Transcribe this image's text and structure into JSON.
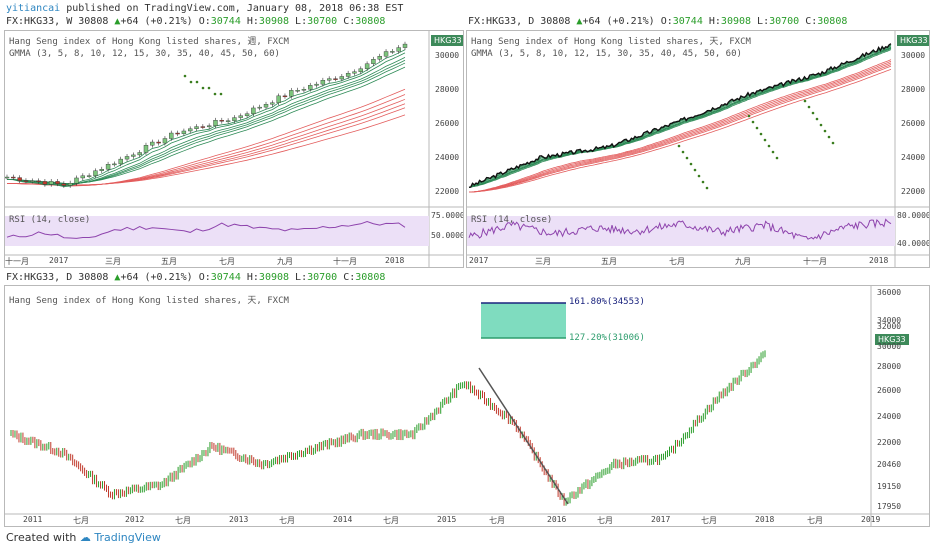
{
  "header": {
    "author": "yitiancai",
    "published": "published on TradingView.com, January 08, 2018 06:38 EST"
  },
  "charts": {
    "weekly": {
      "symbol": "FX:HKG33, W",
      "last": "30808",
      "change": "+64 (+0.21%)",
      "o": "30744",
      "h": "30908",
      "l": "30700",
      "c": "30808",
      "title": "Hang Seng index of Hong Kong listed shares, 週, FXCM",
      "gmma": "GMMA (3, 5, 8, 10, 12, 15, 30, 35, 40, 45, 50, 60)",
      "badge": "HKG33",
      "y_ticks": [
        "30000",
        "28000",
        "26000",
        "24000",
        "22000"
      ],
      "rsi_label": "RSI (14, close)",
      "rsi_ticks": [
        "75.0000",
        "50.0000"
      ],
      "x_ticks": [
        "十一月",
        "2017",
        "三月",
        "五月",
        "七月",
        "九月",
        "十一月",
        "2018"
      ]
    },
    "daily_top": {
      "symbol": "FX:HKG33, D",
      "last": "30808",
      "change": "+64 (+0.21%)",
      "o": "30744",
      "h": "30908",
      "l": "30700",
      "c": "30808",
      "title": "Hang Seng index of Hong Kong listed shares, 天, FXCM",
      "gmma": "GMMA (3, 5, 8, 10, 12, 15, 30, 35, 40, 45, 50, 60)",
      "badge": "HKG33",
      "y_ticks": [
        "30000",
        "28000",
        "26000",
        "24000",
        "22000"
      ],
      "rsi_label": "RSI (14, close)",
      "rsi_ticks": [
        "80.0000",
        "40.0000"
      ],
      "x_ticks": [
        "2017",
        "三月",
        "五月",
        "七月",
        "九月",
        "十一月",
        "2018"
      ]
    },
    "daily_bottom": {
      "symbol": "FX:HKG33, D",
      "last": "30808",
      "change": "+64 (+0.21%)",
      "o": "30744",
      "h": "30908",
      "l": "30700",
      "c": "30808",
      "title": "Hang Seng index of Hong Kong listed shares, 天, FXCM",
      "badge": "HKG33",
      "fib_high": "161.80%(34553)",
      "fib_low": "127.20%(31006)",
      "y_ticks": [
        "36000",
        "34000",
        "32000",
        "30000",
        "28000",
        "26000",
        "24000",
        "22000",
        "20460",
        "19150",
        "17950"
      ],
      "x_ticks": [
        "2011",
        "七月",
        "2012",
        "七月",
        "2013",
        "七月",
        "2014",
        "七月",
        "2015",
        "七月",
        "2016",
        "七月",
        "2017",
        "七月",
        "2018",
        "七月",
        "2019"
      ]
    }
  },
  "footer": {
    "created_with": "Created with",
    "brand": "TradingView"
  },
  "colors": {
    "up": "#2a9d2a",
    "down": "#c0392b",
    "gmma_short": "#2e8b57",
    "gmma_long": "#e35d5d",
    "rsi_line": "#8e44ad",
    "rsi_band": "#e9d8f5",
    "fib_fill": "#7fdcbf",
    "fib_top_line": "#1a237e"
  },
  "chart_data": [
    {
      "type": "line",
      "title": "Hang Seng index of Hong Kong listed shares, 週, FXCM",
      "x": [
        "2016-11",
        "2017-01",
        "2017-03",
        "2017-05",
        "2017-07",
        "2017-09",
        "2017-11",
        "2018-01"
      ],
      "series": [
        {
          "name": "HKG33",
          "values": [
            22500,
            22000,
            23600,
            25300,
            26200,
            27800,
            29000,
            30808
          ]
        }
      ],
      "ylim": [
        21000,
        31000
      ]
    },
    {
      "type": "line",
      "title": "Hang Seng index of Hong Kong listed shares, 天, FXCM",
      "x": [
        "2017-01",
        "2017-03",
        "2017-05",
        "2017-07",
        "2017-09",
        "2017-11",
        "2018-01"
      ],
      "series": [
        {
          "name": "HKG33",
          "values": [
            21900,
            23700,
            24400,
            26000,
            27700,
            29000,
            30808
          ]
        }
      ],
      "ylim": [
        21000,
        31000
      ]
    },
    {
      "type": "line",
      "title": "Hang Seng index of Hong Kong listed shares, 天, FXCM",
      "x": [
        "2011",
        "2011-07",
        "2012",
        "2012-07",
        "2013",
        "2013-07",
        "2014",
        "2014-07",
        "2015",
        "2015-05",
        "2015-07",
        "2016-02",
        "2016-07",
        "2017",
        "2017-07",
        "2018"
      ],
      "series": [
        {
          "name": "HKG33",
          "values": [
            24000,
            22500,
            19000,
            19800,
            23000,
            21500,
            22800,
            24000,
            24000,
            28300,
            25000,
            18400,
            21500,
            22000,
            26800,
            30808
          ]
        }
      ],
      "ylim": [
        17500,
        36000
      ]
    }
  ]
}
